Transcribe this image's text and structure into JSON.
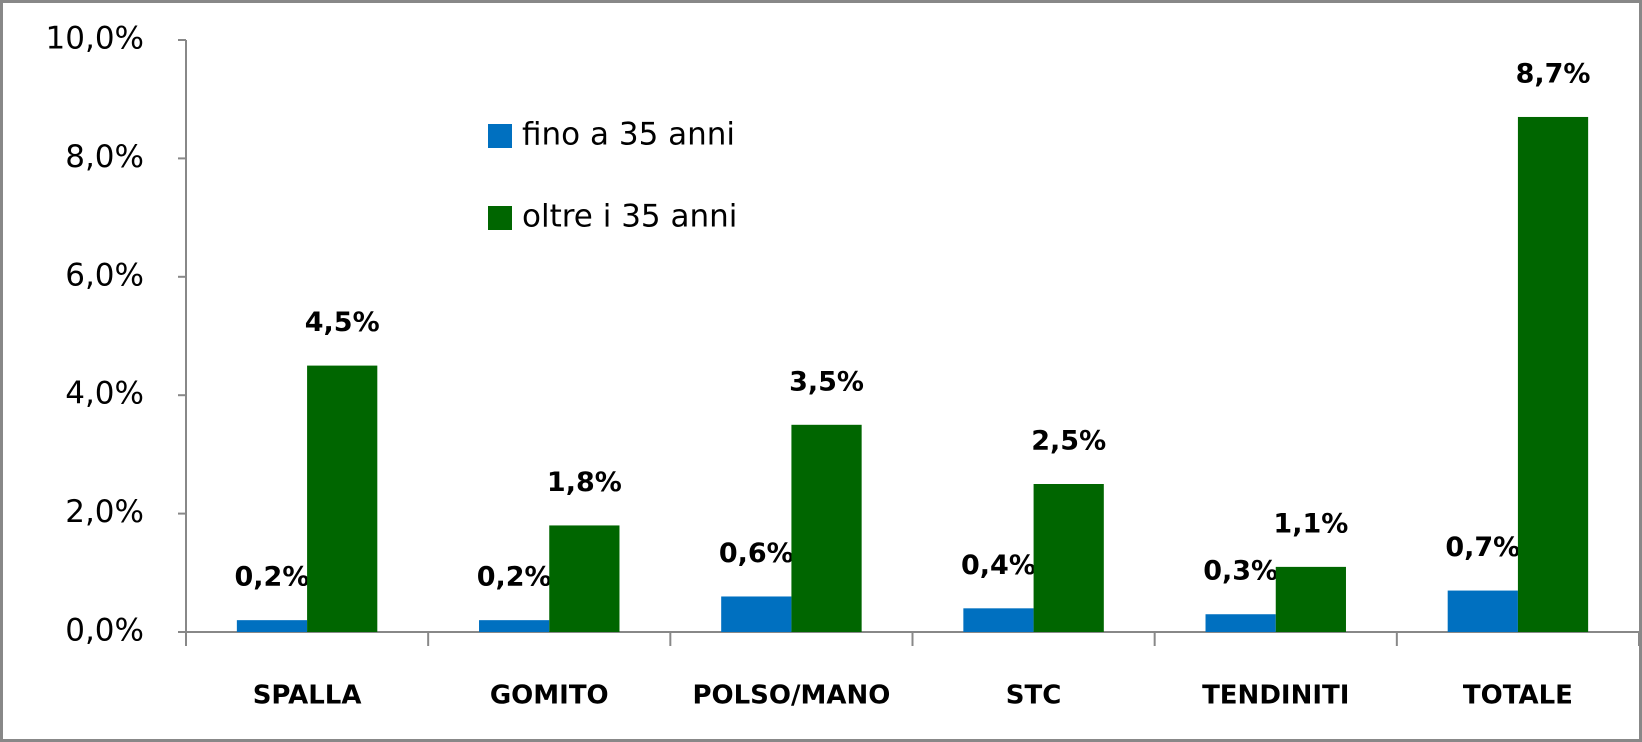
{
  "chart_data": {
    "type": "bar",
    "categories": [
      "SPALLA",
      "GOMITO",
      "POLSO/MANO",
      "STC",
      "TENDINITI",
      "TOTALE"
    ],
    "series": [
      {
        "name": "fino a 35 anni",
        "color": "#0070c0",
        "values": [
          0.2,
          0.2,
          0.6,
          0.4,
          0.3,
          0.7
        ],
        "value_labels": [
          "0,2%",
          "0,2%",
          "0,6%",
          "0,4%",
          "0,3%",
          "0,7%"
        ]
      },
      {
        "name": "oltre i 35 anni",
        "color": "#006600",
        "values": [
          4.5,
          1.8,
          3.5,
          2.5,
          1.1,
          8.7
        ],
        "value_labels": [
          "4,5%",
          "1,8%",
          "3,5%",
          "2,5%",
          "1,1%",
          "8,7%"
        ]
      }
    ],
    "ylim": [
      0,
      10
    ],
    "yticks": [
      {
        "value": 0,
        "label": "0,0%"
      },
      {
        "value": 2,
        "label": "2,0%"
      },
      {
        "value": 4,
        "label": "4,0%"
      },
      {
        "value": 6,
        "label": "6,0%"
      },
      {
        "value": 8,
        "label": "8,0%"
      },
      {
        "value": 10,
        "label": "10,0%"
      }
    ],
    "legend": "upper left"
  }
}
